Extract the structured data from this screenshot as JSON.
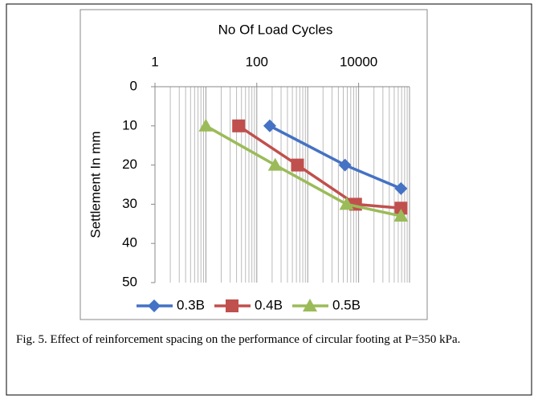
{
  "chart_data": {
    "type": "line",
    "title": "No Of Load Cycles",
    "y_label": "Settlement In mm",
    "xscale": "log",
    "xlim": [
      1,
      100000
    ],
    "xticks": [
      1,
      100,
      10000
    ],
    "ylim": [
      0,
      50
    ],
    "yticks": [
      0,
      10,
      20,
      30,
      40,
      50
    ],
    "y_inverted": true,
    "grid": "x",
    "legend": "bottom",
    "series": [
      {
        "name": "0.3B",
        "color": "#4472c4",
        "marker": "diamond",
        "x": [
          180,
          5400,
          68000
        ],
        "values": [
          10,
          20,
          26
        ]
      },
      {
        "name": "0.4B",
        "color": "#c0504d",
        "marker": "square",
        "x": [
          44,
          630,
          8700,
          68000
        ],
        "values": [
          10,
          20,
          30,
          31
        ]
      },
      {
        "name": "0.5B",
        "color": "#9bbb59",
        "marker": "triangle",
        "x": [
          10,
          230,
          5800,
          68000
        ],
        "values": [
          10,
          20,
          30,
          33
        ]
      }
    ]
  },
  "caption": "Fig. 5. Effect of reinforcement spacing on the performance of circular footing at P=350 kPa."
}
